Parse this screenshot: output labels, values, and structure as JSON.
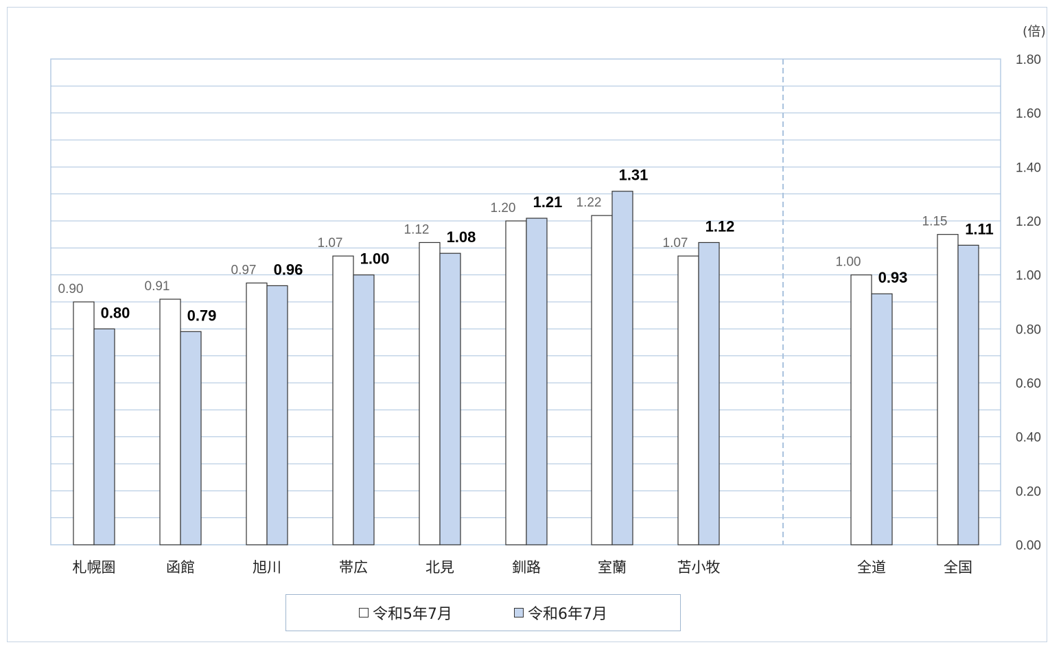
{
  "chart_data": {
    "type": "bar",
    "unit": "(倍)",
    "categories": [
      "札幌圏",
      "函館",
      "旭川",
      "帯広",
      "北見",
      "釧路",
      "室蘭",
      "苫小牧",
      "全道",
      "全国"
    ],
    "series": [
      {
        "name": "令和5年7月",
        "values": [
          0.9,
          0.91,
          0.97,
          1.07,
          1.12,
          1.2,
          1.22,
          1.07,
          1.0,
          1.15
        ],
        "labels": [
          "0.90",
          "0.91",
          "0.97",
          "1.07",
          "1.12",
          "1.20",
          "1.22",
          "1.07",
          "1.00",
          "1.15"
        ],
        "color": "#ffffff"
      },
      {
        "name": "令和6年7月",
        "values": [
          0.8,
          0.79,
          0.96,
          1.0,
          1.08,
          1.21,
          1.31,
          1.12,
          0.93,
          1.11
        ],
        "labels": [
          "0.80",
          "0.79",
          "0.96",
          "1.00",
          "1.08",
          "1.21",
          "1.31",
          "1.12",
          "0.93",
          "1.11"
        ],
        "color": "#c5d6ef"
      }
    ],
    "ylim": [
      0,
      1.8
    ],
    "yticks": [
      "0.00",
      "0.20",
      "0.40",
      "0.60",
      "0.80",
      "1.00",
      "1.20",
      "1.40",
      "1.60",
      "1.80"
    ],
    "y_axis_side": "right",
    "grid": true,
    "separator": "dashed line between 苫小牧 and 全道",
    "legend": {
      "position": "bottom",
      "items": [
        "□令和5年7月",
        "□令和6年7月"
      ]
    }
  }
}
